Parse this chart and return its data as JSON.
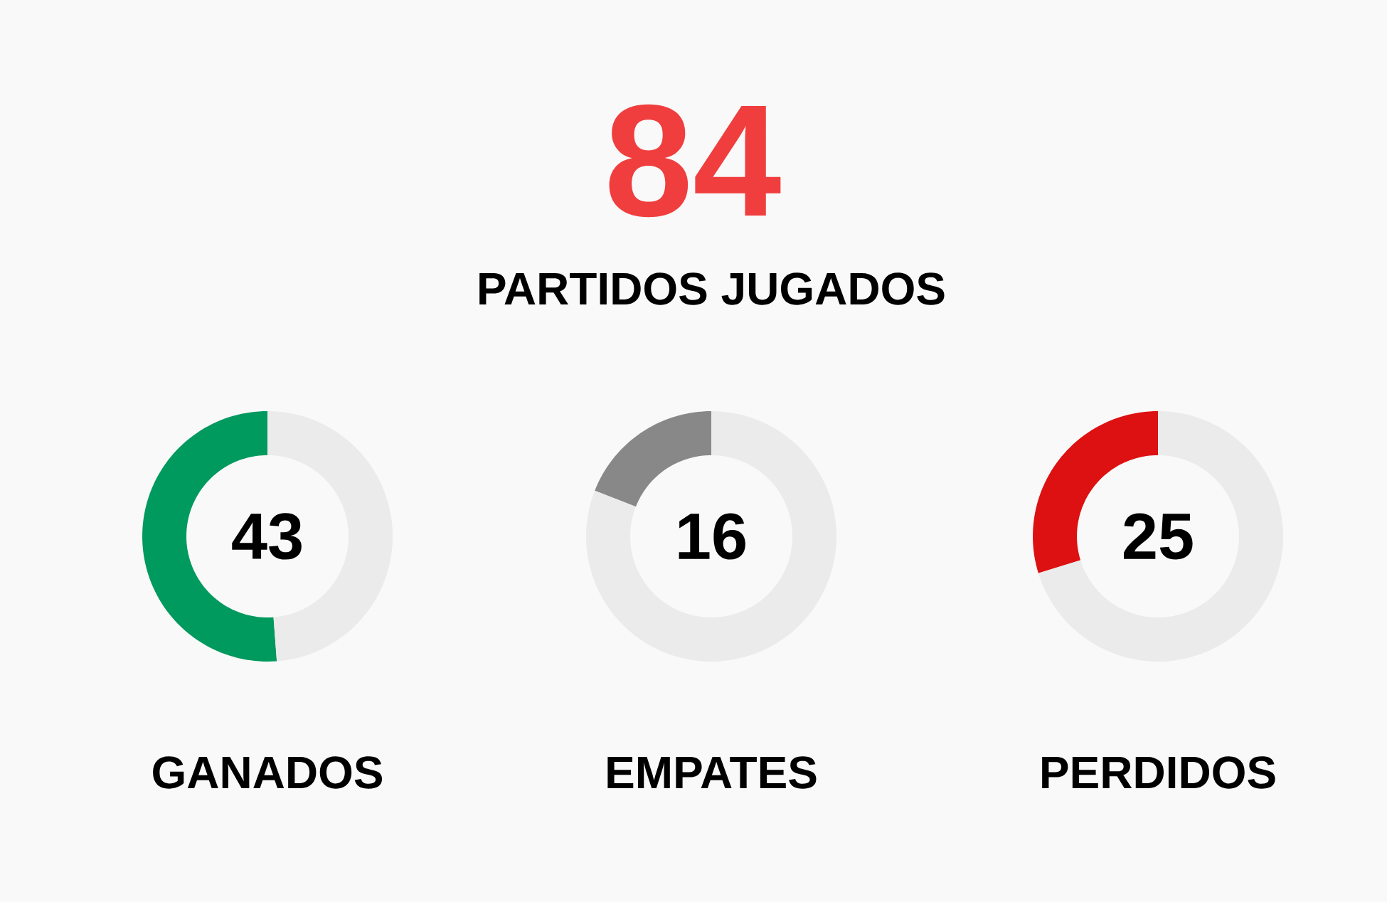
{
  "chart_data": [
    {
      "type": "other",
      "title": "84",
      "subtitle": "PARTIDOS JUGADOS"
    },
    {
      "type": "donut",
      "title": "GANADOS",
      "categories": [
        null,
        null
      ],
      "values": [
        51.19,
        48.81
      ],
      "colors": [
        "#00995e",
        "#ebebeb"
      ],
      "annotations": [
        "43"
      ]
    },
    {
      "type": "donut",
      "title": "EMPATES",
      "categories": [
        null,
        null
      ],
      "values": [
        19.05,
        80.95
      ],
      "colors": [
        "#888888",
        "#ebebeb"
      ],
      "annotations": [
        "16"
      ]
    },
    {
      "type": "donut",
      "title": "PERDIDOS",
      "categories": [
        null,
        null
      ],
      "values": [
        29.76,
        70.24
      ],
      "colors": [
        "#dd1111",
        "#ebebeb"
      ],
      "annotations": [
        "25"
      ]
    }
  ]
}
